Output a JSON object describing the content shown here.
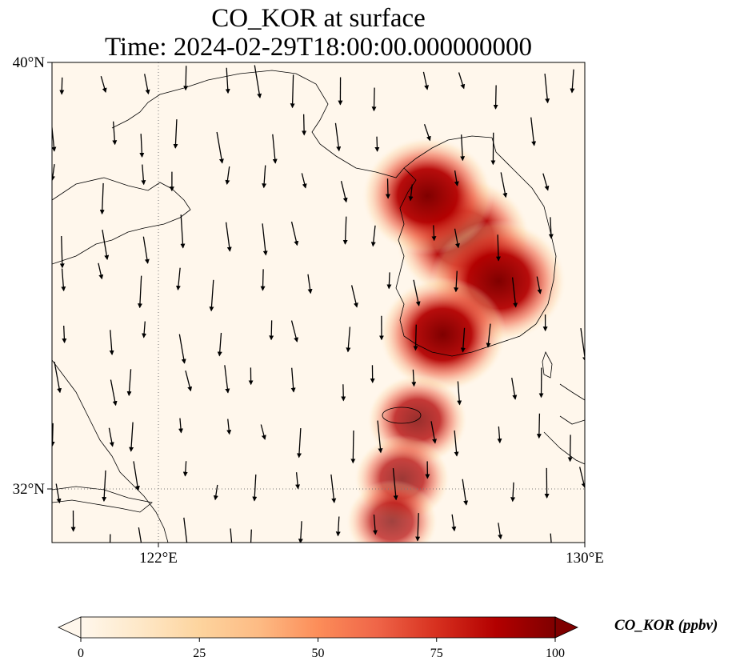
{
  "title": {
    "line1": "CO_KOR at surface",
    "line2": "Time: 2024-02-29T18:00:00.000000000"
  },
  "map": {
    "lon_range": [
      119.5,
      130
    ],
    "lat_range": [
      31,
      40
    ],
    "gridlines": {
      "lon": [
        122
      ],
      "lat": [
        32
      ],
      "style": "dotted"
    },
    "x_ticks": [
      {
        "lon": 122,
        "label": "122°E"
      },
      {
        "lon": 130,
        "label": "130°E"
      }
    ],
    "y_ticks": [
      {
        "lat": 40,
        "label": "40°N"
      },
      {
        "lat": 32,
        "label": "32°N"
      }
    ],
    "field": {
      "variable": "CO_KOR",
      "units": "ppbv",
      "description_of_pattern": null,
      "plumes": [
        {
          "lon": 127.6,
          "lat": 36.7,
          "value": 100
        },
        {
          "lon": 128.3,
          "lat": 35.9,
          "value": 100
        },
        {
          "lon": 126.9,
          "lat": 37.5,
          "value": 95
        },
        {
          "lon": 127.2,
          "lat": 34.9,
          "value": 90
        },
        {
          "lon": 126.7,
          "lat": 33.3,
          "value": 60
        },
        {
          "lon": 126.4,
          "lat": 32.2,
          "value": 55
        },
        {
          "lon": 126.2,
          "lat": 31.4,
          "value": 50
        }
      ]
    },
    "wind": {
      "description": "wind vectors, predominantly southward",
      "u_v_samples": []
    }
  },
  "colorbar": {
    "label": "CO_KOR (ppbv)",
    "colormap": "OrRd",
    "min": 0,
    "max": 100,
    "ticks": [
      "0",
      "25",
      "50",
      "75",
      "100"
    ],
    "extend": "both",
    "colors": [
      "#fff7ec",
      "#fee8c8",
      "#fdd49e",
      "#fdbb84",
      "#fc8d59",
      "#ef6548",
      "#d7301f",
      "#b30000",
      "#7f0000"
    ]
  }
}
